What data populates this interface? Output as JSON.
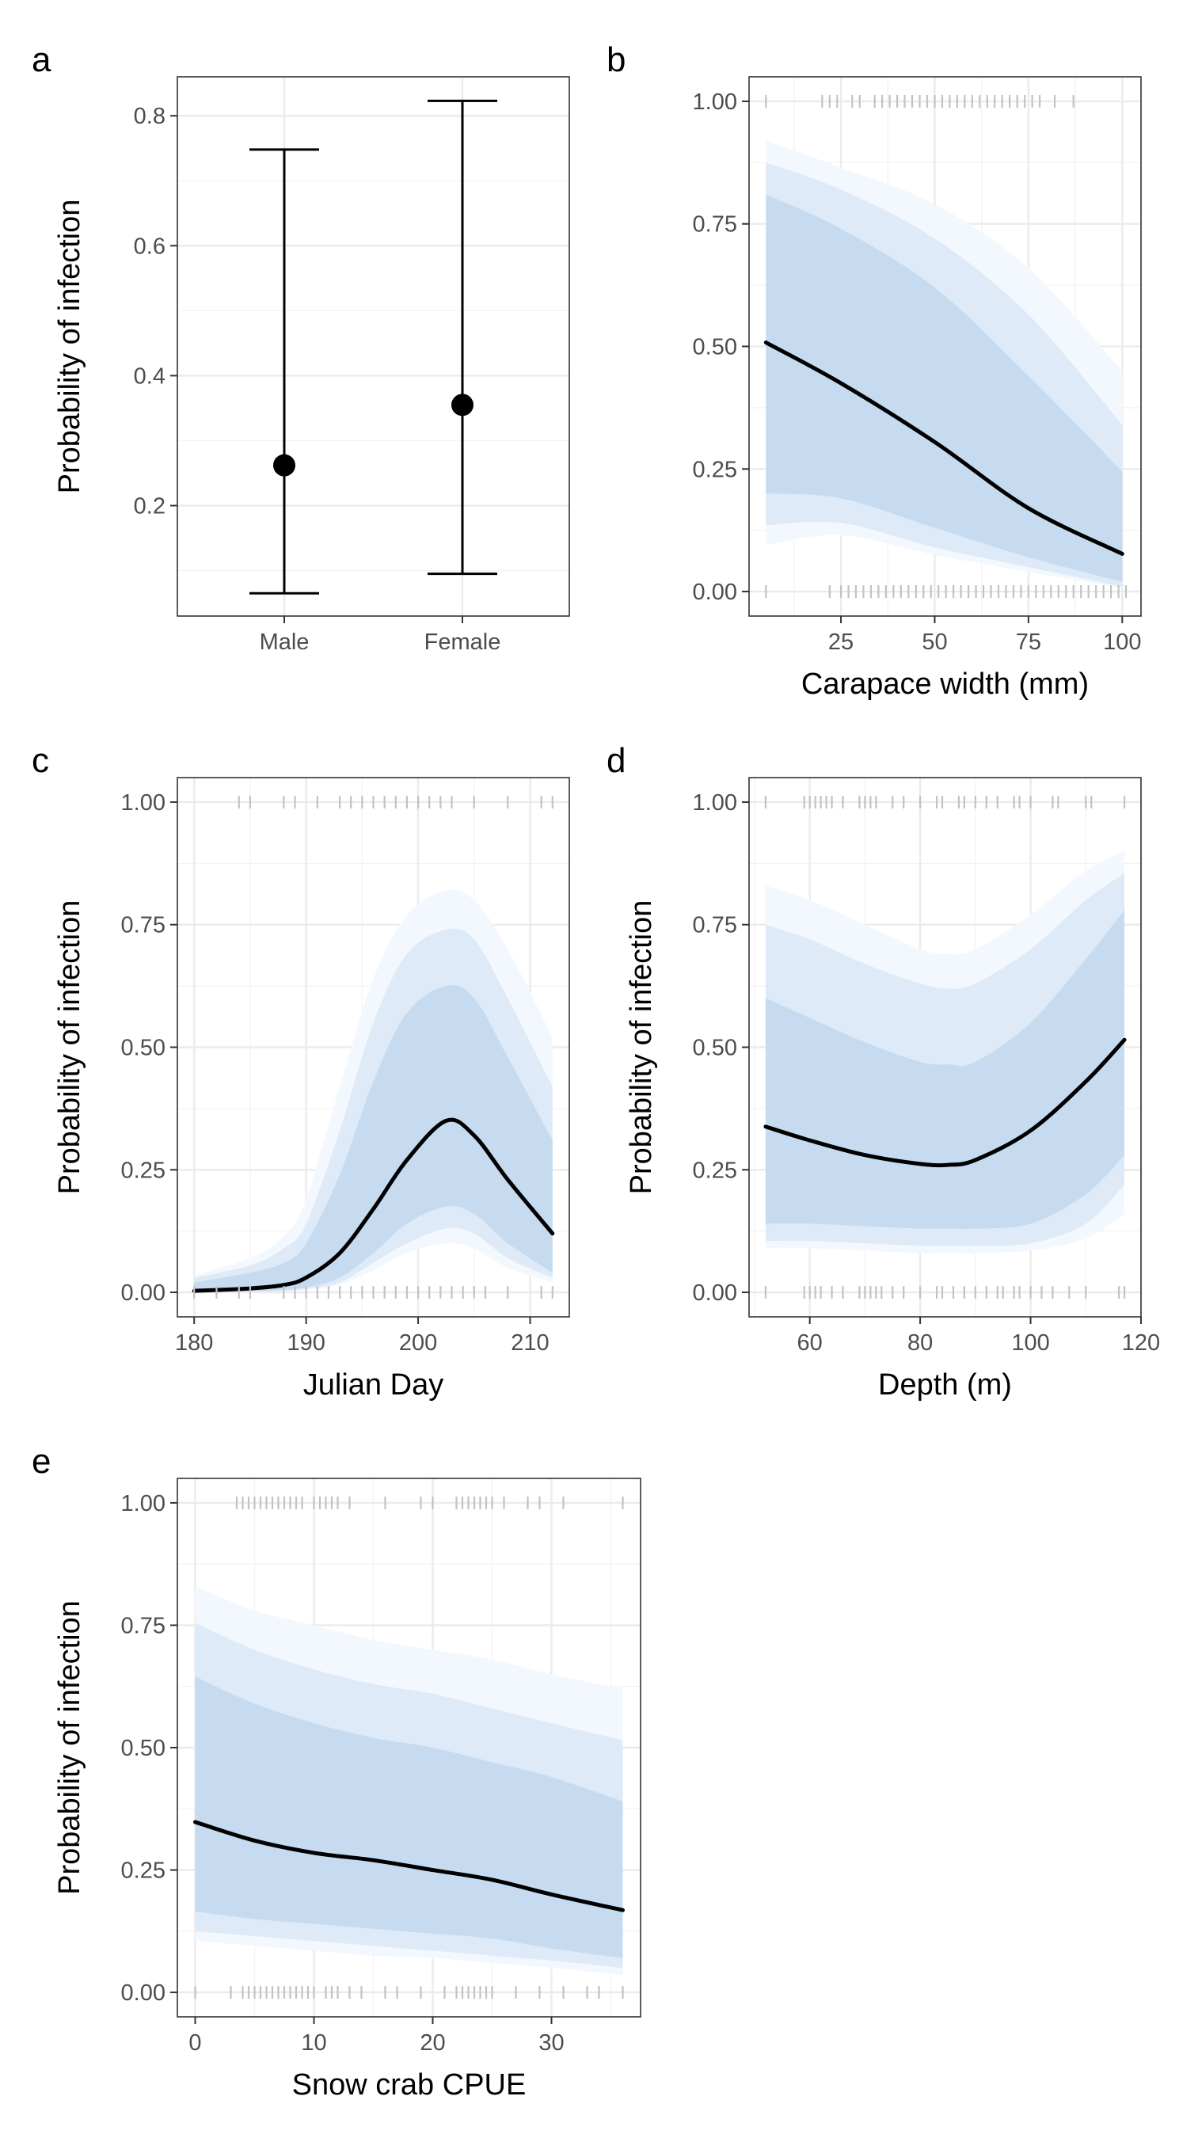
{
  "colors": {
    "band_95": "#f3f8ff",
    "band_90": "#deeaf7",
    "band_80": "#c6dbef",
    "line": "#000000",
    "rug": "#c2c2c2",
    "grid": "#ebebeb"
  },
  "chart_data": [
    {
      "id": "a",
      "type": "errorbar",
      "panel_label": "a",
      "xlabel": "",
      "ylabel": "Probability of infection",
      "categories": [
        "Male",
        "Female"
      ],
      "estimate": [
        0.262,
        0.355
      ],
      "lower": [
        0.065,
        0.095
      ],
      "upper": [
        0.748,
        0.823
      ],
      "ylim": [
        0.03,
        0.86
      ],
      "yticks": [
        0.2,
        0.4,
        0.6,
        0.8
      ],
      "ytick_labels": [
        "0.2",
        "0.4",
        "0.6",
        "0.8"
      ]
    },
    {
      "id": "b",
      "type": "line",
      "panel_label": "b",
      "xlabel": "Carapace width (mm)",
      "ylabel": "",
      "xlim": [
        0.5,
        105
      ],
      "ylim": [
        -0.05,
        1.05
      ],
      "xticks": [
        25,
        50,
        75,
        100
      ],
      "xtick_labels": [
        "25",
        "50",
        "75",
        "100"
      ],
      "yticks": [
        0,
        0.25,
        0.5,
        0.75,
        1
      ],
      "ytick_labels": [
        "0.00",
        "0.25",
        "0.50",
        "0.75",
        "1.00"
      ],
      "x": [
        5,
        25,
        50,
        75,
        100
      ],
      "fit": [
        0.508,
        0.425,
        0.305,
        0.17,
        0.077
      ],
      "band_80": {
        "lower": [
          0.2,
          0.19,
          0.13,
          0.07,
          0.02
        ],
        "upper": [
          0.81,
          0.74,
          0.62,
          0.44,
          0.245
        ]
      },
      "band_90": {
        "lower": [
          0.135,
          0.14,
          0.09,
          0.05,
          0.01
        ],
        "upper": [
          0.875,
          0.82,
          0.72,
          0.565,
          0.34
        ]
      },
      "band_95": {
        "lower": [
          0.095,
          0.115,
          0.075,
          0.04,
          0.007
        ],
        "upper": [
          0.92,
          0.865,
          0.79,
          0.66,
          0.45
        ]
      },
      "rug_top": [
        5,
        20,
        22,
        24,
        28,
        30,
        34,
        36,
        38,
        40,
        42,
        44,
        46,
        48,
        50,
        52,
        54,
        56,
        58,
        60,
        62,
        64,
        66,
        68,
        70,
        72,
        74,
        76,
        78,
        82,
        87
      ],
      "rug_bottom": [
        5,
        22,
        25,
        27,
        29,
        31,
        33,
        35,
        37,
        39,
        41,
        43,
        45,
        47,
        49,
        51,
        53,
        55,
        57,
        59,
        61,
        63,
        65,
        67,
        69,
        71,
        73,
        75,
        77,
        79,
        81,
        83,
        85,
        87,
        89,
        91,
        93,
        95,
        97,
        99,
        101
      ]
    },
    {
      "id": "c",
      "type": "line",
      "panel_label": "c",
      "xlabel": "Julian Day",
      "ylabel": "Probability of infection",
      "xlim": [
        178.5,
        213.5
      ],
      "ylim": [
        -0.05,
        1.05
      ],
      "xticks": [
        180,
        190,
        200,
        210
      ],
      "xtick_labels": [
        "180",
        "190",
        "200",
        "210"
      ],
      "yticks": [
        0,
        0.25,
        0.5,
        0.75,
        1
      ],
      "ytick_labels": [
        "0.00",
        "0.25",
        "0.50",
        "0.75",
        "1.00"
      ],
      "x": [
        180,
        185,
        188,
        190,
        193,
        196,
        199,
        202.5,
        205,
        208,
        212
      ],
      "fit": [
        0.003,
        0.008,
        0.015,
        0.03,
        0.08,
        0.17,
        0.27,
        0.35,
        0.32,
        0.23,
        0.12
      ],
      "band_80": {
        "lower": [
          0.0,
          0.002,
          0.005,
          0.01,
          0.03,
          0.08,
          0.14,
          0.175,
          0.16,
          0.1,
          0.04
        ],
        "upper": [
          0.02,
          0.04,
          0.06,
          0.1,
          0.24,
          0.43,
          0.57,
          0.625,
          0.6,
          0.48,
          0.31
        ]
      },
      "band_90": {
        "lower": [
          0.0,
          0.001,
          0.003,
          0.007,
          0.02,
          0.06,
          0.1,
          0.13,
          0.12,
          0.07,
          0.03
        ],
        "upper": [
          0.03,
          0.055,
          0.09,
          0.14,
          0.33,
          0.55,
          0.69,
          0.74,
          0.72,
          0.6,
          0.42
        ]
      },
      "band_95": {
        "lower": [
          0.0,
          0.0,
          0.002,
          0.005,
          0.015,
          0.045,
          0.08,
          0.1,
          0.09,
          0.05,
          0.02
        ],
        "upper": [
          0.035,
          0.07,
          0.115,
          0.19,
          0.42,
          0.64,
          0.77,
          0.82,
          0.8,
          0.7,
          0.52
        ]
      },
      "rug_top": [
        184,
        185,
        188,
        189,
        191,
        193,
        194,
        195,
        196,
        197,
        198,
        199,
        200,
        201,
        202,
        203,
        205,
        208,
        211,
        212
      ],
      "rug_bottom": [
        180,
        182,
        184,
        185,
        188,
        189,
        190,
        191,
        192,
        193,
        194,
        195,
        196,
        197,
        198,
        199,
        200,
        201,
        202,
        203,
        204,
        205,
        206,
        208,
        211,
        212
      ]
    },
    {
      "id": "d",
      "type": "line",
      "panel_label": "d",
      "xlabel": "Depth (m)",
      "ylabel": "Probability of infection",
      "xlim": [
        49,
        120
      ],
      "ylim": [
        -0.05,
        1.05
      ],
      "xticks": [
        60,
        80,
        100,
        120
      ],
      "xtick_labels": [
        "60",
        "80",
        "100",
        "120"
      ],
      "yticks": [
        0,
        0.25,
        0.5,
        0.75,
        1
      ],
      "ytick_labels": [
        "0.00",
        "0.25",
        "0.50",
        "0.75",
        "1.00"
      ],
      "x": [
        52,
        60,
        70,
        80,
        85,
        90,
        100,
        110,
        117
      ],
      "fit": [
        0.338,
        0.31,
        0.28,
        0.262,
        0.26,
        0.27,
        0.33,
        0.43,
        0.515
      ],
      "band_80": {
        "lower": [
          0.14,
          0.14,
          0.135,
          0.13,
          0.13,
          0.13,
          0.14,
          0.2,
          0.28
        ],
        "upper": [
          0.6,
          0.56,
          0.51,
          0.47,
          0.465,
          0.47,
          0.55,
          0.68,
          0.78
        ]
      },
      "band_90": {
        "lower": [
          0.105,
          0.105,
          0.1,
          0.095,
          0.095,
          0.095,
          0.1,
          0.14,
          0.22
        ],
        "upper": [
          0.75,
          0.72,
          0.67,
          0.63,
          0.62,
          0.63,
          0.7,
          0.8,
          0.855
        ]
      },
      "band_95": {
        "lower": [
          0.09,
          0.09,
          0.085,
          0.08,
          0.08,
          0.08,
          0.085,
          0.11,
          0.16
        ],
        "upper": [
          0.83,
          0.8,
          0.75,
          0.7,
          0.69,
          0.7,
          0.77,
          0.86,
          0.9
        ]
      },
      "rug_top": [
        52,
        59,
        60,
        61,
        62,
        63,
        64,
        66,
        69,
        70,
        71,
        72,
        75,
        77,
        80,
        83,
        84,
        87,
        88,
        90,
        92,
        94,
        97,
        98,
        100,
        104,
        105,
        110,
        111,
        117
      ],
      "rug_bottom": [
        52,
        59,
        60,
        61,
        62,
        64,
        66,
        69,
        70,
        71,
        72,
        73,
        75,
        77,
        80,
        83,
        84,
        86,
        88,
        90,
        92,
        94,
        95,
        97,
        98,
        100,
        102,
        104,
        107,
        110,
        116,
        117
      ]
    },
    {
      "id": "e",
      "type": "line",
      "panel_label": "e",
      "xlabel": "Snow crab CPUE",
      "ylabel": "Probability of infection",
      "xlim": [
        -1.5,
        37.5
      ],
      "ylim": [
        -0.05,
        1.05
      ],
      "xticks": [
        0,
        10,
        20,
        30
      ],
      "xtick_labels": [
        "0",
        "10",
        "20",
        "30"
      ],
      "yticks": [
        0,
        0.25,
        0.5,
        0.75,
        1
      ],
      "ytick_labels": [
        "0.00",
        "0.25",
        "0.50",
        "0.75",
        "1.00"
      ],
      "x": [
        0,
        5,
        10,
        15,
        20,
        25,
        30,
        36
      ],
      "fit": [
        0.348,
        0.31,
        0.285,
        0.27,
        0.25,
        0.23,
        0.2,
        0.168
      ],
      "band_80": {
        "lower": [
          0.165,
          0.15,
          0.14,
          0.13,
          0.12,
          0.11,
          0.09,
          0.07
        ],
        "upper": [
          0.645,
          0.59,
          0.55,
          0.52,
          0.5,
          0.47,
          0.44,
          0.39
        ]
      },
      "band_90": {
        "lower": [
          0.125,
          0.115,
          0.105,
          0.095,
          0.085,
          0.075,
          0.065,
          0.05
        ],
        "upper": [
          0.755,
          0.7,
          0.66,
          0.63,
          0.61,
          0.58,
          0.55,
          0.515
        ]
      },
      "band_95": {
        "lower": [
          0.105,
          0.095,
          0.085,
          0.075,
          0.07,
          0.06,
          0.05,
          0.035
        ],
        "upper": [
          0.83,
          0.78,
          0.75,
          0.72,
          0.7,
          0.68,
          0.65,
          0.62
        ]
      },
      "rug_top": [
        3.5,
        4,
        4.5,
        5,
        5.5,
        6,
        6.5,
        7,
        7.5,
        8,
        8.5,
        9,
        10,
        10.5,
        11,
        11.5,
        12,
        13,
        16,
        19,
        20,
        22,
        22.5,
        23,
        23.5,
        24,
        24.5,
        25,
        26,
        28,
        29,
        31,
        36
      ],
      "rug_bottom": [
        0,
        3,
        4,
        4.5,
        5,
        5.5,
        6,
        6.5,
        7,
        7.5,
        8,
        8.5,
        9,
        9.5,
        10,
        11,
        11.5,
        12,
        13,
        14,
        16,
        17,
        19,
        21,
        22,
        22.5,
        23,
        23.5,
        24,
        24.5,
        25,
        27,
        29,
        31,
        33,
        34,
        36
      ]
    }
  ]
}
